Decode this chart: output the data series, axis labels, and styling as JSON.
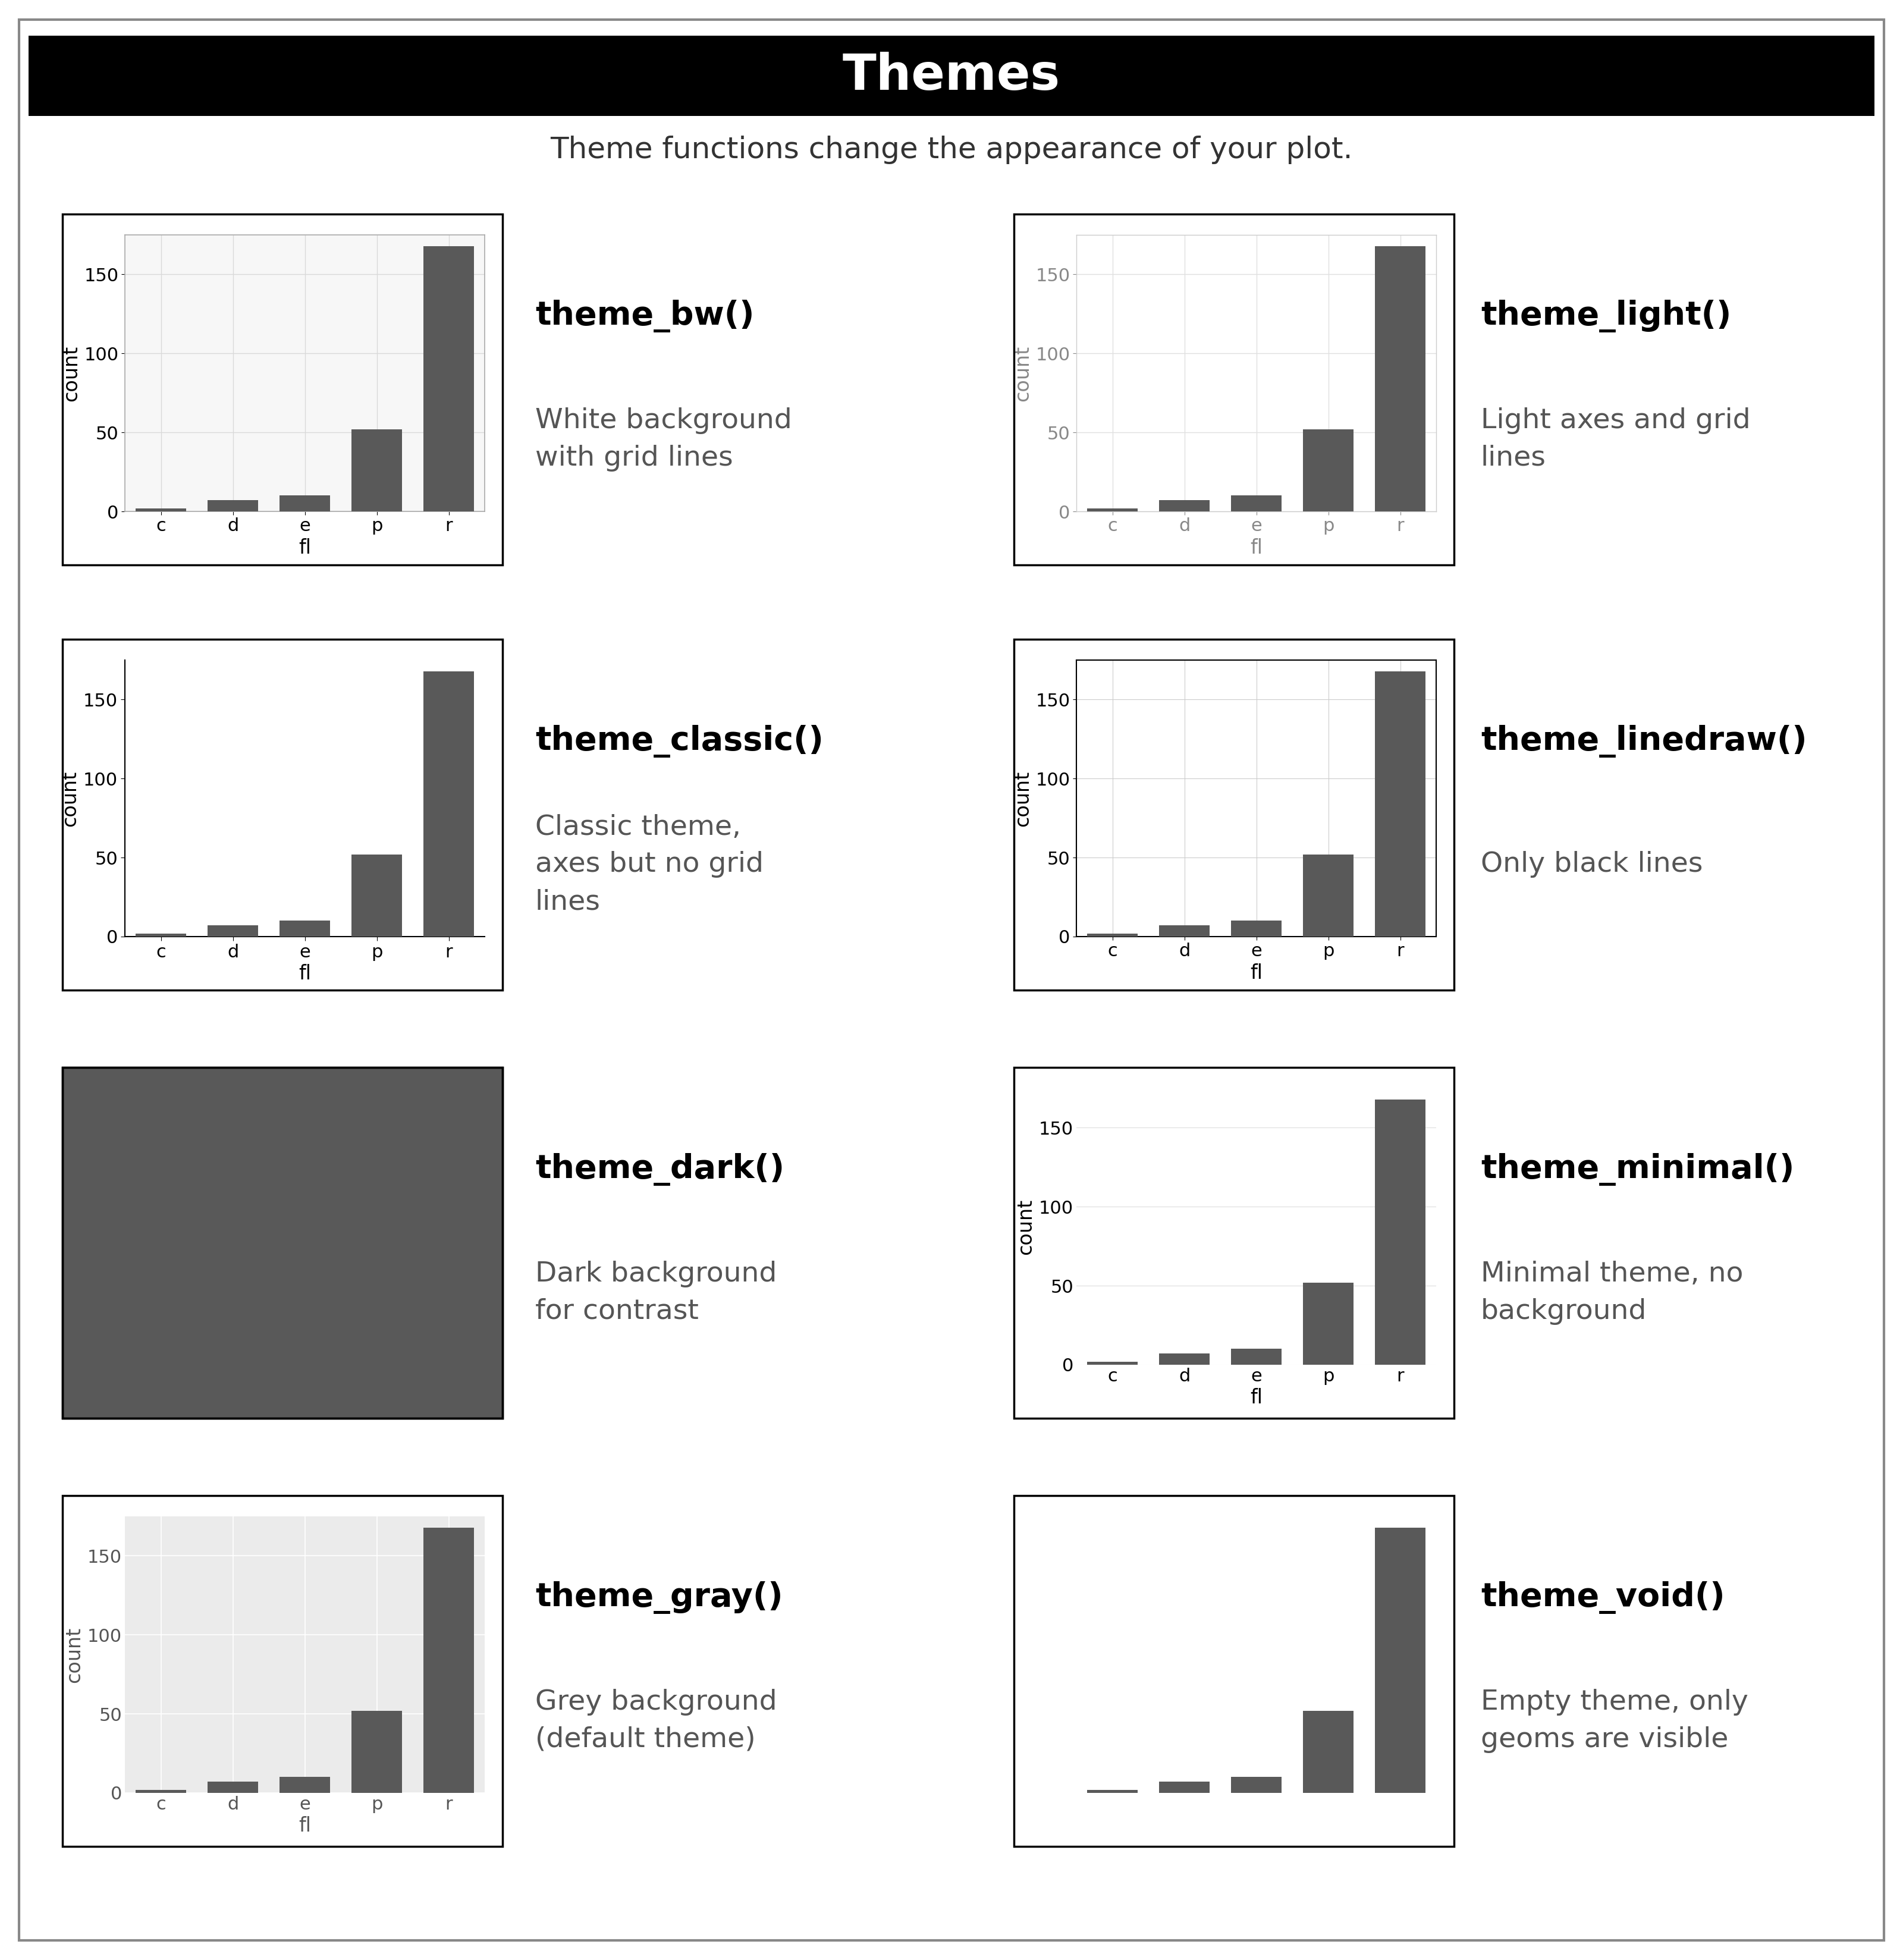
{
  "title": "Themes",
  "subtitle": "Theme functions change the appearance of your plot.",
  "categories": [
    "c",
    "d",
    "e",
    "p",
    "r"
  ],
  "values": [
    2,
    7,
    10,
    52,
    168
  ],
  "bar_color": "#595959",
  "ylim": [
    0,
    175
  ],
  "yticks": [
    0,
    50,
    100,
    150
  ],
  "themes": [
    {
      "name": "theme_bw()",
      "desc": "White background\nwith grid lines",
      "style": "bw"
    },
    {
      "name": "theme_light()",
      "desc": "Light axes and grid\nlines",
      "style": "light"
    },
    {
      "name": "theme_classic()",
      "desc": "Classic theme,\naxes but no grid\nlines",
      "style": "classic"
    },
    {
      "name": "theme_linedraw()",
      "desc": "Only black lines",
      "style": "linedraw"
    },
    {
      "name": "theme_dark()",
      "desc": "Dark background\nfor contrast",
      "style": "dark"
    },
    {
      "name": "theme_minimal()",
      "desc": "Minimal theme, no\nbackground",
      "style": "minimal"
    },
    {
      "name": "theme_gray()",
      "desc": "Grey background\n(default theme)",
      "style": "gray"
    },
    {
      "name": "theme_void()",
      "desc": "Empty theme, only\ngeoms are visible",
      "style": "void"
    }
  ],
  "outer_bg": "#ffffff",
  "header_bg": "#000000",
  "header_text": "#ffffff",
  "border_color": "#555555"
}
